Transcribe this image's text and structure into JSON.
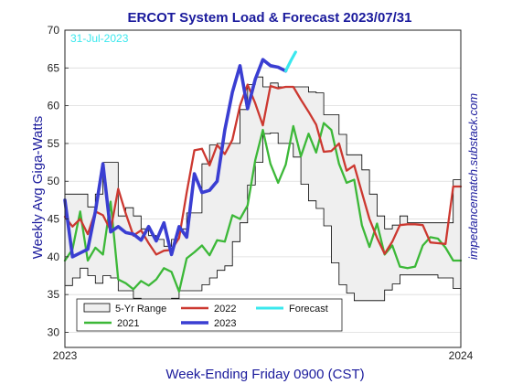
{
  "chart_data": {
    "type": "line",
    "title": "ERCOT System Load & Forecast 2023/07/31",
    "xlabel": "Week-Ending Friday 0900 (CST)",
    "ylabel": "Weekly Avg Giga-Watts",
    "credit": "impedancematch.substack.com",
    "annotation": "31-Jul-2023",
    "x_tick_labels": [
      "2023",
      "2024"
    ],
    "xlim": [
      0,
      52
    ],
    "ylim": [
      28,
      70
    ],
    "y_ticks": [
      30,
      35,
      40,
      45,
      50,
      55,
      60,
      65,
      70
    ],
    "grid": true,
    "legend_position": "bottom-left",
    "legend": {
      "range_label": "5-Yr Range",
      "entries": [
        {
          "key": "range",
          "label": "5-Yr Range"
        },
        {
          "key": "s2022",
          "label": "2022"
        },
        {
          "key": "forecast",
          "label": "Forecast"
        },
        {
          "key": "s2021",
          "label": "2021"
        },
        {
          "key": "s2023",
          "label": "2023"
        }
      ]
    },
    "range": {
      "x": [
        0,
        1,
        2,
        3,
        4,
        5,
        6,
        7,
        8,
        9,
        10,
        11,
        12,
        13,
        14,
        15,
        16,
        17,
        18,
        19,
        20,
        21,
        22,
        23,
        24,
        25,
        26,
        27,
        28,
        29,
        30,
        31,
        32,
        33,
        34,
        35,
        36,
        37,
        38,
        39,
        40,
        41,
        42,
        43,
        44,
        45,
        46,
        47,
        48,
        49,
        50,
        51,
        52
      ],
      "upper": [
        48.3,
        48.3,
        48.3,
        46.6,
        48.3,
        52.5,
        52.5,
        45.4,
        46.5,
        45.4,
        43.7,
        42.8,
        42.3,
        41.4,
        42.3,
        43.7,
        45.8,
        45.8,
        52.3,
        54.8,
        55,
        55,
        55,
        59.5,
        62.8,
        63.8,
        62.5,
        63,
        62.5,
        62.5,
        62.5,
        62.5,
        61.8,
        61.7,
        58.8,
        58.8,
        56.2,
        53.5,
        53.5,
        51.5,
        48.3,
        45.4,
        43.7,
        44.2,
        45.4,
        44.5,
        44.5,
        44.5,
        44.5,
        44.5,
        44.5,
        50.2,
        50.2
      ],
      "lower": [
        36.2,
        37.2,
        38.5,
        37.5,
        36.5,
        37.5,
        37.2,
        35.5,
        35.5,
        34.5,
        34.1,
        33.8,
        33.8,
        34.1,
        34.5,
        35.5,
        35.5,
        35.5,
        36.3,
        37.2,
        38.2,
        38.8,
        42,
        44.5,
        49.5,
        52.5,
        56.3,
        56.4,
        55,
        55,
        53.2,
        49.6,
        47.4,
        46.4,
        44.1,
        39.2,
        36.3,
        35.2,
        34.2,
        34.2,
        34.2,
        34.2,
        35.6,
        36.4,
        37.6,
        37.6,
        37.6,
        37.6,
        37.6,
        37.2,
        37.2,
        35.8,
        35.8
      ]
    },
    "series": [
      {
        "key": "s2021",
        "name": "2021",
        "color": "#3cb838",
        "x": [
          0,
          1,
          2,
          3,
          4,
          5,
          6,
          7,
          8,
          9,
          10,
          11,
          12,
          13,
          14,
          15,
          16,
          17,
          18,
          19,
          20,
          21,
          22,
          23,
          24,
          25,
          26,
          27,
          28,
          29,
          30,
          31,
          32,
          33,
          34,
          35,
          36,
          37,
          38,
          39,
          40,
          41,
          42,
          43,
          44,
          45,
          46,
          47,
          48,
          49,
          50,
          51,
          52
        ],
        "y": [
          39.5,
          41,
          46,
          39.5,
          41.2,
          40.3,
          47.3,
          37,
          36.5,
          35.7,
          36.8,
          36.2,
          37,
          38.5,
          38,
          35.4,
          39.8,
          40.6,
          41.5,
          40.2,
          42.2,
          42,
          45.5,
          45,
          46.8,
          52.8,
          56.8,
          52.3,
          49.8,
          52.2,
          57.3,
          53.3,
          56.3,
          53.8,
          57.7,
          56.8,
          52.3,
          49.8,
          50.2,
          44.2,
          41.3,
          44.4,
          40.3,
          41.5,
          38.7,
          38.5,
          38.7,
          41.5,
          42.6,
          42.4,
          41.2,
          39.5,
          39.5
        ]
      },
      {
        "key": "s2022",
        "name": "2022",
        "color": "#cc3830",
        "x": [
          0,
          1,
          2,
          3,
          4,
          5,
          6,
          7,
          8,
          9,
          10,
          11,
          12,
          13,
          14,
          15,
          16,
          17,
          18,
          19,
          20,
          21,
          22,
          23,
          24,
          25,
          26,
          27,
          28,
          29,
          30,
          31,
          32,
          33,
          34,
          35,
          36,
          37,
          38,
          39,
          40,
          41,
          42,
          43,
          44,
          45,
          46,
          47,
          48,
          49,
          50,
          51,
          52
        ],
        "y": [
          45.3,
          44,
          45,
          43,
          46,
          45.5,
          43.5,
          49,
          45.7,
          42.8,
          43.5,
          41.8,
          40.3,
          40.8,
          40.9,
          42.5,
          48.5,
          54.1,
          54.3,
          52.1,
          54.8,
          53.6,
          55.5,
          60,
          62.8,
          60.3,
          57.4,
          62.6,
          62.3,
          62.5,
          62.5,
          60.8,
          59.2,
          57.5,
          53.9,
          54,
          55,
          51.4,
          52.1,
          48.5,
          45,
          42.5,
          40.4,
          42,
          44.2,
          44.3,
          44.3,
          44.2,
          41.9,
          41.8,
          41.7,
          49.3,
          49.3
        ]
      },
      {
        "key": "s2023",
        "name": "2023",
        "color": "#3a3ed2",
        "x": [
          0,
          1,
          2,
          3,
          4,
          5,
          6,
          7,
          8,
          9,
          10,
          11,
          12,
          13,
          14,
          15,
          16,
          17,
          18,
          19,
          20,
          21,
          22,
          23,
          24,
          25,
          26,
          27,
          28,
          29
        ],
        "y": [
          47.5,
          40,
          40.5,
          41,
          46,
          52.3,
          43.3,
          44,
          43.2,
          43,
          42.2,
          44,
          42.1,
          44.5,
          40.3,
          44,
          42.6,
          51,
          48.5,
          48.8,
          50,
          56.8,
          61.8,
          65.3,
          59.6,
          63.5,
          66.1,
          65.3,
          65.1,
          64.6
        ]
      },
      {
        "key": "forecast",
        "name": "Forecast",
        "color": "#3ae8ee",
        "x": [
          29,
          29.7,
          30.3
        ],
        "y": [
          64.6,
          66,
          67.1
        ]
      }
    ]
  },
  "colors": {
    "title": "#1a1a9c",
    "axis_label": "#1a1a9c",
    "annotation": "#3ae8ee",
    "credit": "#1a1a9c",
    "range_fill": "#efefef",
    "range_stroke": "#000000"
  }
}
